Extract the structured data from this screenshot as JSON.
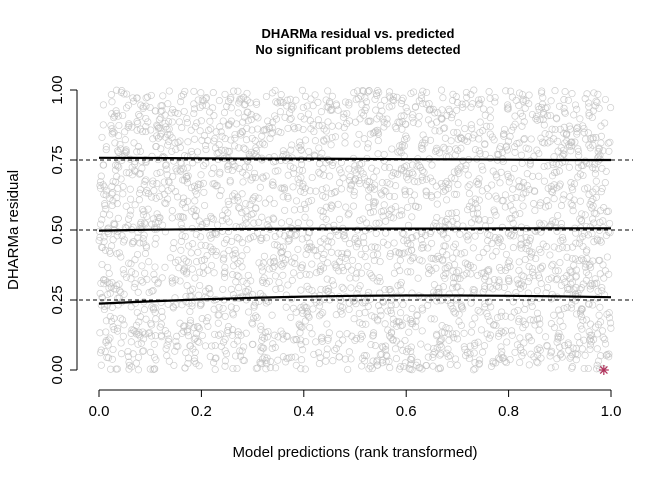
{
  "chart_data": {
    "type": "scatter",
    "title": "DHARMa residual vs. predicted",
    "subtitle": "No significant problems detected",
    "xlabel": "Model predictions (rank transformed)",
    "ylabel": "DHARMa residual",
    "xlim": [
      0,
      1
    ],
    "ylim": [
      0,
      1
    ],
    "x_ticks": [
      "0.0",
      "0.2",
      "0.4",
      "0.6",
      "0.8",
      "1.0"
    ],
    "y_ticks": [
      "0.00",
      "0.25",
      "0.50",
      "0.75",
      "1.00"
    ],
    "reference_lines": [
      0.25,
      0.5,
      0.75
    ],
    "grid": false,
    "legend": "none",
    "point_count": 3000,
    "point_color": "#bdbdbd",
    "outlier": {
      "x": 0.986,
      "y": 0.0,
      "color": "#b0305a"
    },
    "series": [
      {
        "quantile": 0.25,
        "x": [
          0.0,
          0.1,
          0.2,
          0.3,
          0.4,
          0.5,
          0.6,
          0.7,
          0.8,
          0.9,
          1.0
        ],
        "values": [
          0.237,
          0.245,
          0.252,
          0.258,
          0.262,
          0.265,
          0.266,
          0.266,
          0.265,
          0.263,
          0.26
        ]
      },
      {
        "quantile": 0.5,
        "x": [
          0.0,
          0.1,
          0.2,
          0.3,
          0.4,
          0.5,
          0.6,
          0.7,
          0.8,
          0.9,
          1.0
        ],
        "values": [
          0.498,
          0.501,
          0.503,
          0.504,
          0.505,
          0.505,
          0.505,
          0.505,
          0.506,
          0.506,
          0.506
        ]
      },
      {
        "quantile": 0.75,
        "x": [
          0.0,
          0.1,
          0.2,
          0.3,
          0.4,
          0.5,
          0.6,
          0.7,
          0.8,
          0.9,
          1.0
        ],
        "values": [
          0.758,
          0.757,
          0.756,
          0.755,
          0.755,
          0.754,
          0.753,
          0.752,
          0.751,
          0.75,
          0.75
        ]
      }
    ]
  }
}
